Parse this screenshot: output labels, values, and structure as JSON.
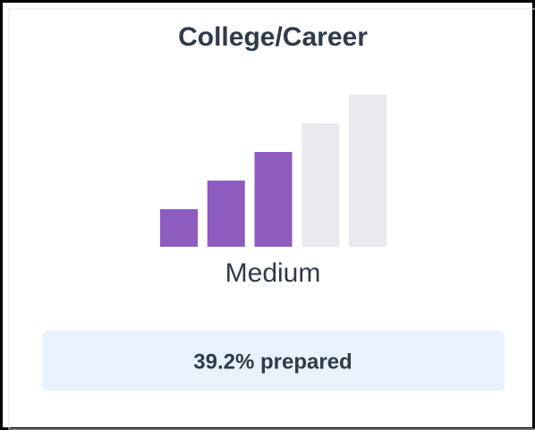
{
  "card": {
    "title": "College/Career",
    "indicator": {
      "label": "Medium",
      "filled": 3,
      "total": 5,
      "color": "#8e5bbf",
      "empty_color": "#e8eaee"
    },
    "status": "39.2% prepared"
  }
}
